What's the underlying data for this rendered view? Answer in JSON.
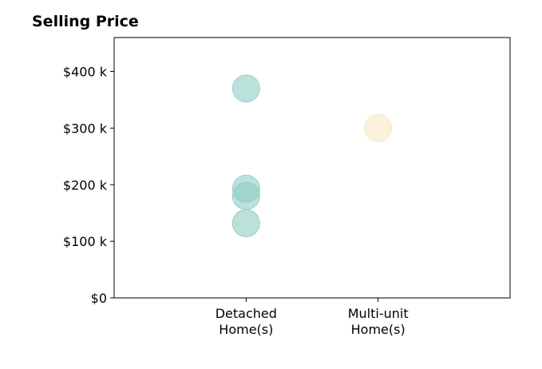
{
  "chart_data": {
    "type": "scatter",
    "title": "Selling Price",
    "categories": [
      "Detached\nHome(s)",
      "Multi-unit\nHome(s)"
    ],
    "yticks": [
      0,
      100000,
      200000,
      300000,
      400000
    ],
    "ytick_labels": [
      "$0",
      "$100 k",
      "$200 k",
      "$300 k",
      "$400 k"
    ],
    "ylim": [
      0,
      460000
    ],
    "xlim": [
      -1,
      2
    ],
    "grid": false,
    "series": [
      {
        "category_index": 0,
        "color": "#8ecdc3",
        "values": [
          370000,
          193000,
          180000,
          132000
        ]
      },
      {
        "category_index": 1,
        "color": "#f9e8c4",
        "values": [
          300000
        ]
      }
    ]
  }
}
